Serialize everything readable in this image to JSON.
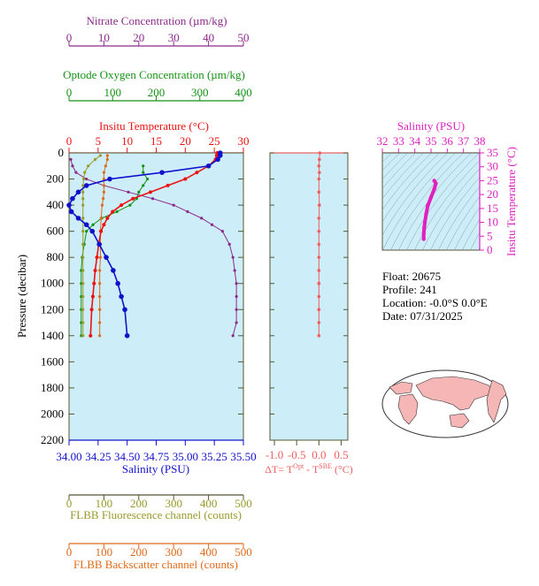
{
  "colors": {
    "nitrate": "#8b2a8b",
    "oxygen": "#159215",
    "temperature": "#ee1111",
    "salinity": "#1111cc",
    "fluorescence": "#9a9a2a",
    "backscatter": "#e06a1a",
    "dt": "#f06060",
    "ts": "#e020c0",
    "panel_bg": "#cdeef8",
    "dark_axis": "#555533"
  },
  "axes": {
    "nitrate": {
      "label": "Nitrate Concentration (µm/kg)",
      "ticks": [
        "0",
        "10",
        "20",
        "30",
        "40",
        "50"
      ]
    },
    "oxygen": {
      "label": "Optode Oxygen Concentration (µm/kg)",
      "ticks": [
        "0",
        "100",
        "200",
        "300",
        "400"
      ]
    },
    "temperature": {
      "label": "Insitu Temperature (°C)",
      "ticks": [
        "0",
        "5",
        "10",
        "15",
        "20",
        "25",
        "30"
      ]
    },
    "salinity": {
      "label": "Salinity (PSU)",
      "ticks": [
        "34.00",
        "34.25",
        "34.50",
        "34.75",
        "35.00",
        "35.25",
        "35.50"
      ]
    },
    "pressure": {
      "label": "Pressure (decibar)",
      "ticks": [
        "0",
        "200",
        "400",
        "600",
        "800",
        "1000",
        "1200",
        "1400",
        "1600",
        "1800",
        "2000",
        "2200"
      ]
    },
    "fluorescence": {
      "label": "FLBB Fluorescence channel (counts)",
      "ticks": [
        "0",
        "100",
        "200",
        "300",
        "400",
        "500"
      ]
    },
    "backscatter": {
      "label": "FLBB Backscatter channel (counts)",
      "ticks": [
        "0",
        "100",
        "200",
        "300",
        "400",
        "500"
      ]
    },
    "dt": {
      "label_main": "ΔT= T",
      "sup1": "Opt",
      "label_mid": " - T",
      "sup2": "SBE",
      "label_end": " (°C)",
      "ticks": [
        "-1.0",
        "-0.5",
        "0.0",
        "0.5"
      ]
    },
    "ts_salinity": {
      "label": "Salinity (PSU)",
      "ticks": [
        "32",
        "33",
        "34",
        "35",
        "36",
        "37",
        "38"
      ]
    },
    "ts_temperature": {
      "label": "Insitu Temperature (°C)",
      "ticks": [
        "0",
        "5",
        "10",
        "15",
        "20",
        "25",
        "30",
        "35"
      ]
    }
  },
  "info": {
    "float": "Float:  20675",
    "profile": "Profile:  241",
    "location": "Location:  -0.0°S   0.0°E",
    "date": "Date:  07/31/2025"
  },
  "chart_data": {
    "type": "line",
    "y_axis": {
      "name": "pressure",
      "range": [
        0,
        2200
      ],
      "inverted": true
    },
    "series": [
      {
        "key": "temperature",
        "x": [
          25.5,
          25.4,
          25.2,
          24,
          22,
          20,
          17,
          14,
          11,
          9,
          7.5,
          6.6,
          6,
          5.5,
          5.1,
          4.8,
          4.5,
          4.3,
          4.1,
          3.9,
          3.7
        ],
        "y": [
          0,
          20,
          50,
          100,
          150,
          200,
          250,
          300,
          350,
          400,
          450,
          500,
          550,
          600,
          700,
          800,
          900,
          1000,
          1100,
          1200,
          1400
        ]
      },
      {
        "key": "salinity",
        "x": [
          35.3,
          35.3,
          35.28,
          35.2,
          34.8,
          34.35,
          34.15,
          34.08,
          34.03,
          34.0,
          34.02,
          34.08,
          34.15,
          34.2,
          34.26,
          34.32,
          34.38,
          34.42,
          34.45,
          34.48,
          34.5
        ],
        "y": [
          0,
          20,
          50,
          100,
          150,
          200,
          250,
          300,
          350,
          400,
          450,
          500,
          550,
          600,
          700,
          800,
          900,
          1000,
          1100,
          1200,
          1400
        ]
      },
      {
        "key": "oxygen",
        "x": [
          170,
          170,
          180,
          170,
          160,
          155,
          140,
          110,
          75,
          55,
          40,
          35,
          30,
          28,
          28,
          28,
          28,
          28,
          28
        ],
        "y": [
          100,
          150,
          200,
          250,
          300,
          350,
          400,
          450,
          500,
          550,
          600,
          700,
          800,
          900,
          1000,
          1100,
          1200,
          1300,
          1400
        ]
      },
      {
        "key": "nitrate",
        "x": [
          0.5,
          1,
          2,
          5,
          10,
          17,
          24,
          30,
          34,
          38,
          41,
          44,
          46,
          47,
          47.5,
          48,
          48,
          48,
          48,
          47
        ],
        "y": [
          50,
          100,
          150,
          200,
          250,
          300,
          350,
          400,
          450,
          500,
          550,
          600,
          700,
          800,
          900,
          1000,
          1100,
          1200,
          1300,
          1400
        ]
      },
      {
        "key": "fluorescence",
        "x": [
          90,
          75,
          55,
          45,
          42,
          40,
          40,
          40,
          40,
          40,
          40,
          40,
          40,
          40,
          40,
          40,
          40,
          40,
          40
        ],
        "y": [
          20,
          50,
          100,
          150,
          200,
          250,
          300,
          350,
          400,
          500,
          600,
          700,
          800,
          900,
          1000,
          1100,
          1200,
          1300,
          1400
        ]
      },
      {
        "key": "backscatter",
        "x": [
          110,
          110,
          105,
          100,
          100,
          100,
          100,
          98,
          95,
          92,
          90,
          90,
          90,
          88,
          88,
          88,
          88,
          88,
          88
        ],
        "y": [
          20,
          50,
          100,
          150,
          200,
          250,
          300,
          350,
          400,
          500,
          600,
          700,
          800,
          900,
          1000,
          1100,
          1200,
          1300,
          1400
        ]
      },
      {
        "key": "dt",
        "x": [
          0.02,
          0.01,
          0.0,
          0.01,
          0.0,
          0.0,
          0.01,
          0.0,
          0.0,
          0.0,
          0.0,
          0.0,
          0.0,
          0.0,
          0.0,
          0.0,
          0.0,
          0.0,
          0.0
        ],
        "y": [
          0,
          50,
          100,
          150,
          200,
          300,
          400,
          500,
          600,
          700,
          800,
          900,
          1000,
          1100,
          1200,
          1300,
          1400,
          1200,
          1000
        ]
      },
      {
        "key": "ts",
        "x": [
          35.2,
          35.3,
          35.2,
          35.0,
          34.8,
          34.7,
          34.62,
          34.58,
          34.55,
          34.55
        ],
        "y": [
          25,
          24,
          22,
          19,
          16,
          13,
          10,
          8,
          6,
          4
        ]
      }
    ]
  }
}
